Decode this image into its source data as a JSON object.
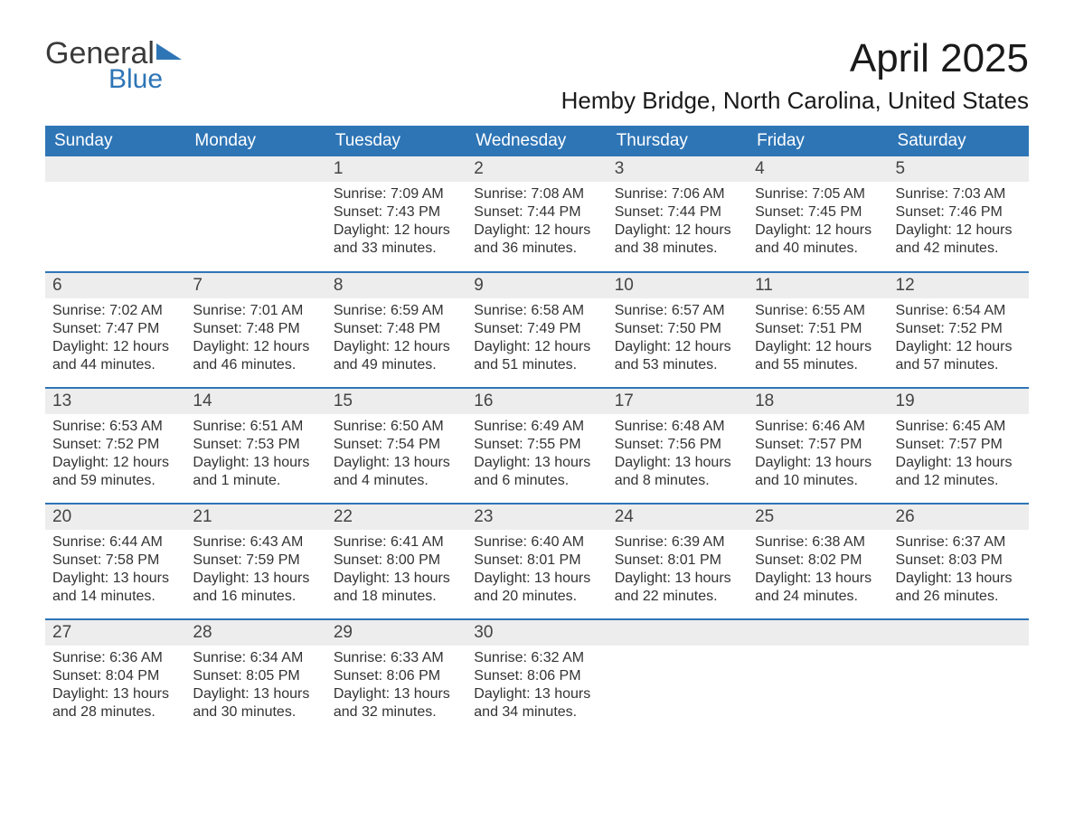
{
  "logo": {
    "text1": "General",
    "text2": "Blue"
  },
  "title": "April 2025",
  "location": "Hemby Bridge, North Carolina, United States",
  "colors": {
    "header_bg": "#2e75b6",
    "header_text": "#ffffff",
    "daynum_bg": "#ededed",
    "row_border": "#2e75b6",
    "body_text": "#333333",
    "logo_blue": "#2e75b6"
  },
  "weekdays": [
    "Sunday",
    "Monday",
    "Tuesday",
    "Wednesday",
    "Thursday",
    "Friday",
    "Saturday"
  ],
  "weeks": [
    [
      {
        "blank": true
      },
      {
        "blank": true
      },
      {
        "day": "1",
        "sunrise": "Sunrise: 7:09 AM",
        "sunset": "Sunset: 7:43 PM",
        "daylight1": "Daylight: 12 hours",
        "daylight2": "and 33 minutes."
      },
      {
        "day": "2",
        "sunrise": "Sunrise: 7:08 AM",
        "sunset": "Sunset: 7:44 PM",
        "daylight1": "Daylight: 12 hours",
        "daylight2": "and 36 minutes."
      },
      {
        "day": "3",
        "sunrise": "Sunrise: 7:06 AM",
        "sunset": "Sunset: 7:44 PM",
        "daylight1": "Daylight: 12 hours",
        "daylight2": "and 38 minutes."
      },
      {
        "day": "4",
        "sunrise": "Sunrise: 7:05 AM",
        "sunset": "Sunset: 7:45 PM",
        "daylight1": "Daylight: 12 hours",
        "daylight2": "and 40 minutes."
      },
      {
        "day": "5",
        "sunrise": "Sunrise: 7:03 AM",
        "sunset": "Sunset: 7:46 PM",
        "daylight1": "Daylight: 12 hours",
        "daylight2": "and 42 minutes."
      }
    ],
    [
      {
        "day": "6",
        "sunrise": "Sunrise: 7:02 AM",
        "sunset": "Sunset: 7:47 PM",
        "daylight1": "Daylight: 12 hours",
        "daylight2": "and 44 minutes."
      },
      {
        "day": "7",
        "sunrise": "Sunrise: 7:01 AM",
        "sunset": "Sunset: 7:48 PM",
        "daylight1": "Daylight: 12 hours",
        "daylight2": "and 46 minutes."
      },
      {
        "day": "8",
        "sunrise": "Sunrise: 6:59 AM",
        "sunset": "Sunset: 7:48 PM",
        "daylight1": "Daylight: 12 hours",
        "daylight2": "and 49 minutes."
      },
      {
        "day": "9",
        "sunrise": "Sunrise: 6:58 AM",
        "sunset": "Sunset: 7:49 PM",
        "daylight1": "Daylight: 12 hours",
        "daylight2": "and 51 minutes."
      },
      {
        "day": "10",
        "sunrise": "Sunrise: 6:57 AM",
        "sunset": "Sunset: 7:50 PM",
        "daylight1": "Daylight: 12 hours",
        "daylight2": "and 53 minutes."
      },
      {
        "day": "11",
        "sunrise": "Sunrise: 6:55 AM",
        "sunset": "Sunset: 7:51 PM",
        "daylight1": "Daylight: 12 hours",
        "daylight2": "and 55 minutes."
      },
      {
        "day": "12",
        "sunrise": "Sunrise: 6:54 AM",
        "sunset": "Sunset: 7:52 PM",
        "daylight1": "Daylight: 12 hours",
        "daylight2": "and 57 minutes."
      }
    ],
    [
      {
        "day": "13",
        "sunrise": "Sunrise: 6:53 AM",
        "sunset": "Sunset: 7:52 PM",
        "daylight1": "Daylight: 12 hours",
        "daylight2": "and 59 minutes."
      },
      {
        "day": "14",
        "sunrise": "Sunrise: 6:51 AM",
        "sunset": "Sunset: 7:53 PM",
        "daylight1": "Daylight: 13 hours",
        "daylight2": "and 1 minute."
      },
      {
        "day": "15",
        "sunrise": "Sunrise: 6:50 AM",
        "sunset": "Sunset: 7:54 PM",
        "daylight1": "Daylight: 13 hours",
        "daylight2": "and 4 minutes."
      },
      {
        "day": "16",
        "sunrise": "Sunrise: 6:49 AM",
        "sunset": "Sunset: 7:55 PM",
        "daylight1": "Daylight: 13 hours",
        "daylight2": "and 6 minutes."
      },
      {
        "day": "17",
        "sunrise": "Sunrise: 6:48 AM",
        "sunset": "Sunset: 7:56 PM",
        "daylight1": "Daylight: 13 hours",
        "daylight2": "and 8 minutes."
      },
      {
        "day": "18",
        "sunrise": "Sunrise: 6:46 AM",
        "sunset": "Sunset: 7:57 PM",
        "daylight1": "Daylight: 13 hours",
        "daylight2": "and 10 minutes."
      },
      {
        "day": "19",
        "sunrise": "Sunrise: 6:45 AM",
        "sunset": "Sunset: 7:57 PM",
        "daylight1": "Daylight: 13 hours",
        "daylight2": "and 12 minutes."
      }
    ],
    [
      {
        "day": "20",
        "sunrise": "Sunrise: 6:44 AM",
        "sunset": "Sunset: 7:58 PM",
        "daylight1": "Daylight: 13 hours",
        "daylight2": "and 14 minutes."
      },
      {
        "day": "21",
        "sunrise": "Sunrise: 6:43 AM",
        "sunset": "Sunset: 7:59 PM",
        "daylight1": "Daylight: 13 hours",
        "daylight2": "and 16 minutes."
      },
      {
        "day": "22",
        "sunrise": "Sunrise: 6:41 AM",
        "sunset": "Sunset: 8:00 PM",
        "daylight1": "Daylight: 13 hours",
        "daylight2": "and 18 minutes."
      },
      {
        "day": "23",
        "sunrise": "Sunrise: 6:40 AM",
        "sunset": "Sunset: 8:01 PM",
        "daylight1": "Daylight: 13 hours",
        "daylight2": "and 20 minutes."
      },
      {
        "day": "24",
        "sunrise": "Sunrise: 6:39 AM",
        "sunset": "Sunset: 8:01 PM",
        "daylight1": "Daylight: 13 hours",
        "daylight2": "and 22 minutes."
      },
      {
        "day": "25",
        "sunrise": "Sunrise: 6:38 AM",
        "sunset": "Sunset: 8:02 PM",
        "daylight1": "Daylight: 13 hours",
        "daylight2": "and 24 minutes."
      },
      {
        "day": "26",
        "sunrise": "Sunrise: 6:37 AM",
        "sunset": "Sunset: 8:03 PM",
        "daylight1": "Daylight: 13 hours",
        "daylight2": "and 26 minutes."
      }
    ],
    [
      {
        "day": "27",
        "sunrise": "Sunrise: 6:36 AM",
        "sunset": "Sunset: 8:04 PM",
        "daylight1": "Daylight: 13 hours",
        "daylight2": "and 28 minutes."
      },
      {
        "day": "28",
        "sunrise": "Sunrise: 6:34 AM",
        "sunset": "Sunset: 8:05 PM",
        "daylight1": "Daylight: 13 hours",
        "daylight2": "and 30 minutes."
      },
      {
        "day": "29",
        "sunrise": "Sunrise: 6:33 AM",
        "sunset": "Sunset: 8:06 PM",
        "daylight1": "Daylight: 13 hours",
        "daylight2": "and 32 minutes."
      },
      {
        "day": "30",
        "sunrise": "Sunrise: 6:32 AM",
        "sunset": "Sunset: 8:06 PM",
        "daylight1": "Daylight: 13 hours",
        "daylight2": "and 34 minutes."
      },
      {
        "blank": true
      },
      {
        "blank": true
      },
      {
        "blank": true
      }
    ]
  ]
}
